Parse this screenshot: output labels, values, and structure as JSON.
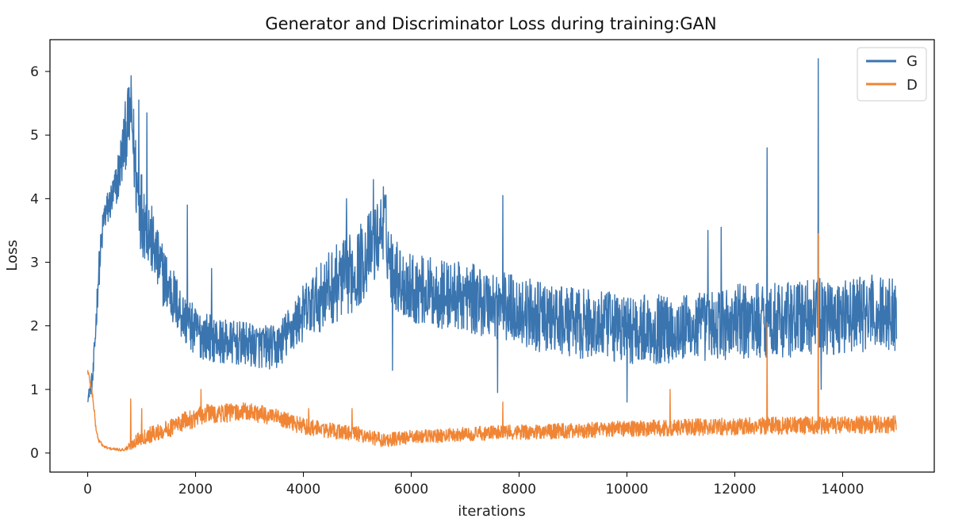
{
  "chart_data": {
    "type": "line",
    "title": "Generator and Discriminator Loss during training:GAN",
    "xlabel": "iterations",
    "ylabel": "Loss",
    "xlim": [
      -700,
      15700
    ],
    "ylim": [
      -0.3,
      6.5
    ],
    "xticks": [
      0,
      2000,
      4000,
      6000,
      8000,
      10000,
      12000,
      14000
    ],
    "yticks": [
      0,
      1,
      2,
      3,
      4,
      5,
      6
    ],
    "grid": false,
    "legend": "top-right",
    "series": [
      {
        "name": "G",
        "color": "#3a75b0",
        "x": [
          0,
          100,
          200,
          300,
          400,
          500,
          600,
          700,
          800,
          900,
          1000,
          1100,
          1200,
          1300,
          1500,
          1800,
          2000,
          2500,
          3000,
          3500,
          4000,
          4500,
          5000,
          5400,
          5500,
          5600,
          5800,
          6000,
          6500,
          7000,
          7500,
          8000,
          8500,
          9000,
          9500,
          10000,
          10500,
          11000,
          11500,
          12000,
          12500,
          13000,
          13500,
          14000,
          14500,
          15000
        ],
        "y": [
          0.85,
          1.2,
          2.8,
          3.7,
          3.9,
          4.1,
          4.5,
          5.0,
          5.4,
          4.3,
          3.8,
          3.6,
          3.3,
          3.0,
          2.6,
          2.1,
          1.9,
          1.75,
          1.7,
          1.65,
          2.2,
          2.6,
          2.9,
          3.4,
          3.7,
          3.0,
          2.7,
          2.6,
          2.5,
          2.45,
          2.35,
          2.25,
          2.1,
          2.05,
          2.0,
          1.95,
          1.95,
          1.95,
          2.0,
          2.05,
          2.1,
          2.1,
          2.15,
          2.15,
          2.2,
          2.2
        ],
        "spread": [
          0.05,
          0.2,
          0.3,
          0.3,
          0.3,
          0.35,
          0.45,
          0.55,
          0.6,
          0.7,
          0.7,
          0.6,
          0.55,
          0.5,
          0.5,
          0.4,
          0.4,
          0.35,
          0.35,
          0.35,
          0.45,
          0.6,
          0.65,
          0.6,
          0.6,
          0.6,
          0.55,
          0.55,
          0.55,
          0.55,
          0.55,
          0.55,
          0.55,
          0.55,
          0.55,
          0.55,
          0.55,
          0.55,
          0.55,
          0.6,
          0.6,
          0.6,
          0.6,
          0.6,
          0.6,
          0.6
        ],
        "spikes": [
          [
            950,
            5.55
          ],
          [
            1100,
            5.35
          ],
          [
            1850,
            3.9
          ],
          [
            2300,
            2.9
          ],
          [
            4800,
            4.0
          ],
          [
            5300,
            4.3
          ],
          [
            5650,
            1.3
          ],
          [
            7700,
            4.05
          ],
          [
            7600,
            0.95
          ],
          [
            10000,
            0.8
          ],
          [
            11500,
            3.5
          ],
          [
            11750,
            3.55
          ],
          [
            12600,
            4.8
          ],
          [
            13550,
            6.2
          ],
          [
            13600,
            1.0
          ]
        ]
      },
      {
        "name": "D",
        "color": "#f08535",
        "x": [
          0,
          50,
          100,
          150,
          200,
          300,
          400,
          500,
          600,
          700,
          800,
          900,
          1000,
          1200,
          1500,
          1800,
          2000,
          2200,
          2500,
          3000,
          3500,
          4000,
          4500,
          5000,
          5500,
          6000,
          6500,
          7000,
          8000,
          9000,
          10000,
          11000,
          12000,
          13000,
          14000,
          15000
        ],
        "y": [
          1.3,
          1.1,
          0.85,
          0.4,
          0.2,
          0.1,
          0.07,
          0.06,
          0.05,
          0.06,
          0.12,
          0.2,
          0.25,
          0.3,
          0.38,
          0.5,
          0.55,
          0.62,
          0.62,
          0.65,
          0.55,
          0.42,
          0.35,
          0.3,
          0.2,
          0.25,
          0.27,
          0.3,
          0.33,
          0.35,
          0.38,
          0.4,
          0.42,
          0.43,
          0.44,
          0.45
        ],
        "spread": [
          0.05,
          0.06,
          0.06,
          0.05,
          0.03,
          0.02,
          0.02,
          0.02,
          0.02,
          0.03,
          0.08,
          0.1,
          0.12,
          0.13,
          0.14,
          0.15,
          0.15,
          0.15,
          0.15,
          0.15,
          0.14,
          0.13,
          0.12,
          0.12,
          0.11,
          0.11,
          0.11,
          0.11,
          0.12,
          0.12,
          0.13,
          0.13,
          0.14,
          0.14,
          0.14,
          0.14
        ],
        "spikes": [
          [
            800,
            0.85
          ],
          [
            1000,
            0.7
          ],
          [
            2100,
            1.0
          ],
          [
            4100,
            0.7
          ],
          [
            4900,
            0.7
          ],
          [
            7700,
            0.8
          ],
          [
            10800,
            1.0
          ],
          [
            12600,
            2.05
          ],
          [
            13550,
            3.45
          ]
        ]
      }
    ]
  }
}
